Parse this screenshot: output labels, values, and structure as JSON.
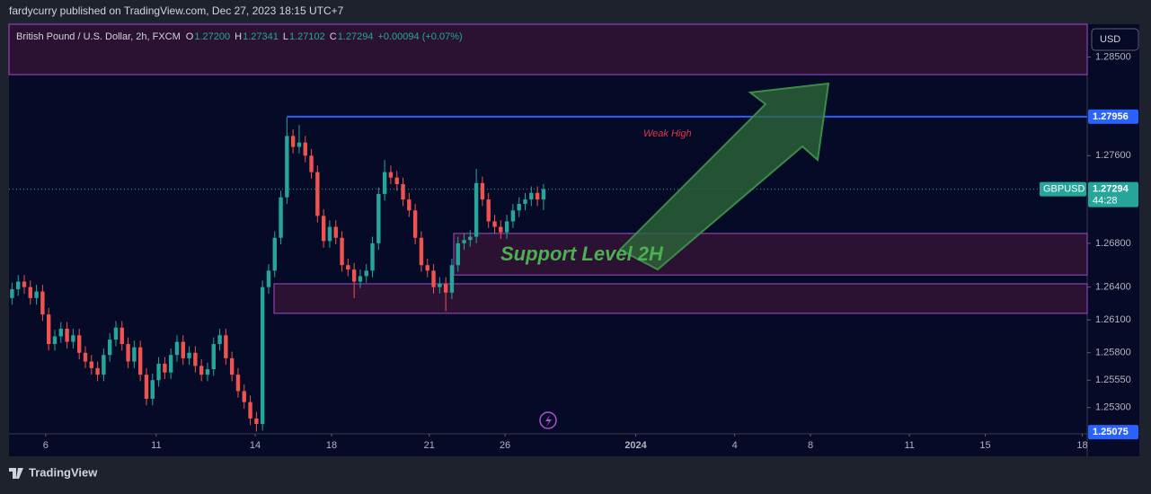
{
  "header": {
    "publisher": "fardycurry published on TradingView.com, Dec 27, 2023 18:15 UTC+7"
  },
  "footer": {
    "brand": "TradingView"
  },
  "chart_data": {
    "type": "candlestick",
    "legend": {
      "symbol": "British Pound / U.S. Dollar, 2h, FXCM",
      "items": [
        {
          "key": "O",
          "value": "1.27200"
        },
        {
          "key": "H",
          "value": "1.27341"
        },
        {
          "key": "L",
          "value": "1.27102"
        },
        {
          "key": "C",
          "value": "1.27294"
        }
      ],
      "change": "+0.00094 (+0.07%)"
    },
    "currency": "USD",
    "up_color": "#26a69a",
    "down_color": "#ef5350",
    "ylim": [
      1.2506,
      1.288
    ],
    "yticks": [
      {
        "value": 1.285,
        "label": "1.28500"
      },
      {
        "value": 1.276,
        "label": "1.27600"
      },
      {
        "value": 1.268,
        "label": "1.26800"
      },
      {
        "value": 1.264,
        "label": "1.26400"
      },
      {
        "value": 1.261,
        "label": "1.26100"
      },
      {
        "value": 1.258,
        "label": "1.25800"
      },
      {
        "value": 1.2555,
        "label": "1.25550"
      },
      {
        "value": 1.253,
        "label": "1.25300"
      }
    ],
    "xlim": [
      -0.5,
      176
    ],
    "xticks": [
      {
        "value": 5.5,
        "label": "6"
      },
      {
        "value": 23.6,
        "label": "11"
      },
      {
        "value": 39.8,
        "label": "14"
      },
      {
        "value": 52.3,
        "label": "18"
      },
      {
        "value": 68.3,
        "label": "21"
      },
      {
        "value": 80.7,
        "label": "26"
      },
      {
        "value": 102.1,
        "label": "2024"
      },
      {
        "value": 118.3,
        "label": "4"
      },
      {
        "value": 130.7,
        "label": "8"
      },
      {
        "value": 146.9,
        "label": "11"
      },
      {
        "value": 159.3,
        "label": "15"
      },
      {
        "value": 175.2,
        "label": "18"
      }
    ],
    "zones": [
      {
        "top": 1.288,
        "bottom": 1.2834
      },
      {
        "top": 1.2689,
        "bottom": 1.2651
      },
      {
        "top": 1.2643,
        "bottom": 1.2616
      }
    ],
    "price_lines": [
      {
        "value": 1.27956,
        "label": "1.27956",
        "color": "#2962ff"
      },
      {
        "value": 1.27294,
        "label": "1.27294",
        "color": "#26a69a",
        "name": "GBPUSD",
        "countdown": "44:28"
      },
      {
        "value": 1.25075,
        "label": "1.25075",
        "color": "#2962ff"
      }
    ],
    "annotations": {
      "weak_high": "Weak High",
      "support": "Support Level 2H"
    },
    "ohlc": [
      [
        1.263,
        1.2644,
        1.2624,
        1.2638
      ],
      [
        1.2638,
        1.2651,
        1.2632,
        1.2645
      ],
      [
        1.2645,
        1.2651,
        1.2634,
        1.264
      ],
      [
        1.264,
        1.2646,
        1.2624,
        1.263
      ],
      [
        1.263,
        1.2642,
        1.2624,
        1.2636
      ],
      [
        1.2636,
        1.2642,
        1.2609,
        1.2615
      ],
      [
        1.2615,
        1.2621,
        1.2582,
        1.2588
      ],
      [
        1.2588,
        1.2601,
        1.2582,
        1.2595
      ],
      [
        1.2595,
        1.2608,
        1.2589,
        1.2602
      ],
      [
        1.2602,
        1.2608,
        1.2584,
        1.259
      ],
      [
        1.259,
        1.2602,
        1.2584,
        1.2596
      ],
      [
        1.2596,
        1.2602,
        1.2574,
        1.258
      ],
      [
        1.258,
        1.2586,
        1.2566,
        1.2572
      ],
      [
        1.2572,
        1.2578,
        1.256,
        1.2566
      ],
      [
        1.2566,
        1.2572,
        1.2554,
        1.256
      ],
      [
        1.256,
        1.2584,
        1.2554,
        1.2578
      ],
      [
        1.2578,
        1.2598,
        1.2572,
        1.2592
      ],
      [
        1.2592,
        1.2609,
        1.2586,
        1.2603
      ],
      [
        1.2603,
        1.2609,
        1.2582,
        1.2588
      ],
      [
        1.2588,
        1.2594,
        1.2566,
        1.2572
      ],
      [
        1.2572,
        1.2591,
        1.2566,
        1.2585
      ],
      [
        1.2585,
        1.2591,
        1.2554,
        1.256
      ],
      [
        1.256,
        1.2566,
        1.2532,
        1.2538
      ],
      [
        1.2538,
        1.2561,
        1.2532,
        1.2555
      ],
      [
        1.2555,
        1.2576,
        1.2549,
        1.257
      ],
      [
        1.257,
        1.2576,
        1.2556,
        1.2562
      ],
      [
        1.2562,
        1.2584,
        1.2556,
        1.2578
      ],
      [
        1.2578,
        1.2596,
        1.2572,
        1.259
      ],
      [
        1.259,
        1.2596,
        1.2569,
        1.2575
      ],
      [
        1.2575,
        1.2586,
        1.2569,
        1.258
      ],
      [
        1.258,
        1.2586,
        1.2562,
        1.2568
      ],
      [
        1.2568,
        1.2574,
        1.2554,
        1.256
      ],
      [
        1.256,
        1.2571,
        1.2554,
        1.2565
      ],
      [
        1.2565,
        1.2594,
        1.2559,
        1.2588
      ],
      [
        1.2588,
        1.2602,
        1.2582,
        1.2596
      ],
      [
        1.2596,
        1.2602,
        1.2569,
        1.2575
      ],
      [
        1.2575,
        1.2581,
        1.2554,
        1.256
      ],
      [
        1.256,
        1.2566,
        1.2539,
        1.2545
      ],
      [
        1.2545,
        1.2551,
        1.2529,
        1.2535
      ],
      [
        1.2535,
        1.2541,
        1.2514,
        1.252
      ],
      [
        1.252,
        1.2526,
        1.2508,
        1.2515
      ],
      [
        1.2515,
        1.2646,
        1.2509,
        1.264
      ],
      [
        1.264,
        1.2661,
        1.2634,
        1.2655
      ],
      [
        1.2655,
        1.2691,
        1.2649,
        1.2685
      ],
      [
        1.2685,
        1.2728,
        1.2679,
        1.2722
      ],
      [
        1.2722,
        1.2795,
        1.2716,
        1.2778
      ],
      [
        1.2778,
        1.2784,
        1.2762,
        1.2768
      ],
      [
        1.2768,
        1.2788,
        1.2762,
        1.2772
      ],
      [
        1.2772,
        1.2778,
        1.2754,
        1.276
      ],
      [
        1.276,
        1.2766,
        1.2739,
        1.2745
      ],
      [
        1.2745,
        1.2751,
        1.2699,
        1.2705
      ],
      [
        1.2705,
        1.2711,
        1.2676,
        1.2682
      ],
      [
        1.2682,
        1.2701,
        1.2676,
        1.2695
      ],
      [
        1.2695,
        1.2701,
        1.2679,
        1.2685
      ],
      [
        1.2685,
        1.2691,
        1.2654,
        1.266
      ],
      [
        1.266,
        1.2666,
        1.265,
        1.2656
      ],
      [
        1.2656,
        1.2662,
        1.263,
        1.2645
      ],
      [
        1.2645,
        1.2656,
        1.2639,
        1.265
      ],
      [
        1.265,
        1.2661,
        1.2644,
        1.2655
      ],
      [
        1.2655,
        1.2686,
        1.2649,
        1.268
      ],
      [
        1.268,
        1.2731,
        1.2674,
        1.2725
      ],
      [
        1.2725,
        1.2756,
        1.2719,
        1.2745
      ],
      [
        1.2745,
        1.2751,
        1.2734,
        1.274
      ],
      [
        1.274,
        1.2746,
        1.2728,
        1.2734
      ],
      [
        1.2734,
        1.274,
        1.2714,
        1.272
      ],
      [
        1.272,
        1.2726,
        1.2704,
        1.271
      ],
      [
        1.271,
        1.2716,
        1.2679,
        1.2685
      ],
      [
        1.2685,
        1.2691,
        1.2654,
        1.266
      ],
      [
        1.266,
        1.2666,
        1.2649,
        1.2655
      ],
      [
        1.2655,
        1.2661,
        1.2634,
        1.264
      ],
      [
        1.264,
        1.2649,
        1.2634,
        1.2643
      ],
      [
        1.2643,
        1.2649,
        1.2618,
        1.2635
      ],
      [
        1.2635,
        1.2666,
        1.2629,
        1.266
      ],
      [
        1.266,
        1.2686,
        1.2654,
        1.268
      ],
      [
        1.268,
        1.2689,
        1.2674,
        1.2683
      ],
      [
        1.2683,
        1.2692,
        1.2677,
        1.2686
      ],
      [
        1.2686,
        1.2748,
        1.268,
        1.2735
      ],
      [
        1.2735,
        1.2741,
        1.2714,
        1.272
      ],
      [
        1.272,
        1.2726,
        1.2694,
        1.27
      ],
      [
        1.27,
        1.2706,
        1.2689,
        1.2695
      ],
      [
        1.2695,
        1.2701,
        1.2684,
        1.269
      ],
      [
        1.269,
        1.2706,
        1.2684,
        1.27
      ],
      [
        1.27,
        1.2716,
        1.2694,
        1.271
      ],
      [
        1.271,
        1.2722,
        1.2704,
        1.2716
      ],
      [
        1.2716,
        1.2726,
        1.271,
        1.272
      ],
      [
        1.272,
        1.2732,
        1.2714,
        1.2726
      ],
      [
        1.2726,
        1.2732,
        1.2714,
        1.272
      ],
      [
        1.272,
        1.27341,
        1.27102,
        1.27294
      ]
    ]
  }
}
